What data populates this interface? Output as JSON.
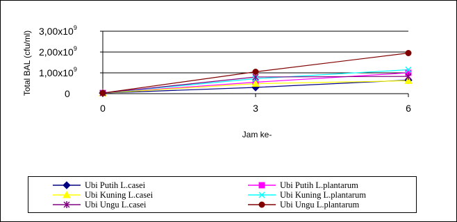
{
  "chart_data": {
    "type": "line",
    "title": "",
    "xlabel": "Jam ke-",
    "ylabel": "Total BAL (cfu/ml)",
    "x": [
      0,
      3,
      6
    ],
    "xlim": [
      0,
      6
    ],
    "ylim": [
      0,
      3000000000
    ],
    "y_ticks": [
      {
        "value": 0,
        "mantissa": "0",
        "exp": ""
      },
      {
        "value": 1000000000,
        "mantissa": "1,00x10",
        "exp": "9"
      },
      {
        "value": 2000000000,
        "mantissa": "2,00x10",
        "exp": "9"
      },
      {
        "value": 3000000000,
        "mantissa": "3,00x10",
        "exp": "9"
      }
    ],
    "x_ticks": [
      "0",
      "3",
      "6"
    ],
    "grid": "horizontal",
    "legend_position": "bottom",
    "series": [
      {
        "name": "Ubi Putih L.casei",
        "color": "#000080",
        "marker": "diamond",
        "values": [
          30000000,
          300000000,
          650000000
        ]
      },
      {
        "name": "Ubi Putih L.plantarum",
        "color": "#ff00ff",
        "marker": "square",
        "values": [
          30000000,
          550000000,
          1000000000
        ]
      },
      {
        "name": "Ubi Kuning L.casei",
        "color": "#ffff00",
        "marker": "triangle",
        "values": [
          30000000,
          480000000,
          620000000
        ]
      },
      {
        "name": "Ubi Kuning L.plantarum",
        "color": "#00ffff",
        "marker": "x",
        "values": [
          30000000,
          720000000,
          1150000000
        ]
      },
      {
        "name": "Ubi Ungu L.casei",
        "color": "#800080",
        "marker": "star",
        "values": [
          30000000,
          800000000,
          830000000
        ]
      },
      {
        "name": "Ubi Ungu L.plantarum",
        "color": "#800000",
        "marker": "circle",
        "values": [
          30000000,
          1050000000,
          1950000000
        ]
      }
    ]
  }
}
